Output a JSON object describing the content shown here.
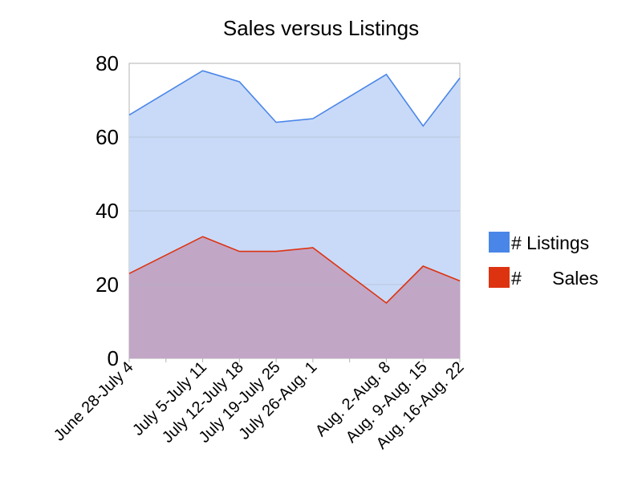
{
  "chart_data": {
    "type": "area",
    "title": "Sales versus Listings",
    "xlabel": "",
    "ylabel": "",
    "ylim": [
      0,
      80
    ],
    "yticks": [
      0,
      20,
      40,
      60,
      80
    ],
    "categories": [
      "June 28-July 4",
      "",
      "July 5-July 11",
      "July 12-July 18",
      "July 19-July 25",
      "July 26-Aug. 1",
      "",
      "Aug. 2-Aug. 8",
      "Aug. 9-Aug. 15",
      "Aug. 16-Aug. 22"
    ],
    "series": [
      {
        "name": "# Listings",
        "color": "#4a86e8",
        "fill": "#c9daf8",
        "values": [
          66,
          72,
          78,
          75,
          64,
          65,
          71,
          77,
          63,
          76
        ]
      },
      {
        "name": "#      Sales",
        "color": "#dd3311",
        "fill": "#c2a6c6",
        "values": [
          23,
          28,
          33,
          29,
          29,
          30,
          22.5,
          15,
          25,
          21
        ]
      }
    ],
    "grid": true,
    "legend": "right"
  }
}
